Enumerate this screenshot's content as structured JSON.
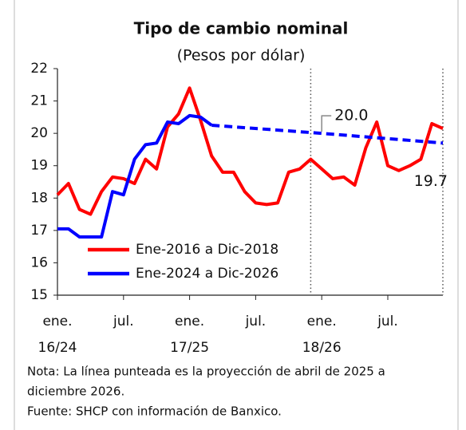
{
  "chart_data": {
    "type": "line",
    "title": "Tipo de cambio nominal",
    "subtitle": "(Pesos por dólar)",
    "x": [
      0,
      1,
      2,
      3,
      4,
      5,
      6,
      7,
      8,
      9,
      10,
      11,
      12,
      13,
      14,
      15,
      16,
      17,
      18,
      19,
      20,
      21,
      22,
      23,
      24,
      25,
      26,
      27,
      28,
      29,
      30,
      31,
      32,
      33,
      34,
      35
    ],
    "xlim": [
      0,
      35
    ],
    "xticks": [
      {
        "value": 0,
        "label": "ene.",
        "sublabel": "16/24"
      },
      {
        "value": 6,
        "label": "jul."
      },
      {
        "value": 12,
        "label": "ene.",
        "sublabel": "17/25"
      },
      {
        "value": 18,
        "label": "jul."
      },
      {
        "value": 24,
        "label": "ene.",
        "sublabel": "18/26"
      },
      {
        "value": 30,
        "label": "jul."
      }
    ],
    "ylim": [
      15,
      22
    ],
    "yticks": [
      15,
      16,
      17,
      18,
      19,
      20,
      21,
      22
    ],
    "series": [
      {
        "name": "Ene-2016 a Dic-2018",
        "color": "#ff0000",
        "values": [
          18.1,
          18.45,
          17.65,
          17.5,
          18.2,
          18.65,
          18.6,
          18.45,
          19.2,
          18.9,
          20.2,
          20.6,
          21.4,
          20.4,
          19.3,
          18.8,
          18.8,
          18.2,
          17.85,
          17.8,
          17.85,
          18.8,
          18.9,
          19.2,
          18.9,
          18.6,
          18.65,
          18.4,
          19.55,
          20.35,
          19.0,
          18.85,
          19.0,
          19.2,
          20.3,
          20.15
        ]
      },
      {
        "name": "Ene-2024 a Dic-2026",
        "color": "#0000ff",
        "values": [
          17.05,
          17.05,
          16.8,
          16.8,
          16.8,
          18.2,
          18.1,
          19.2,
          19.65,
          19.7,
          20.35,
          20.3,
          20.55,
          20.5,
          20.25,
          null,
          null,
          null,
          null,
          null,
          null,
          null,
          null,
          null,
          null,
          null,
          null,
          null,
          null,
          null,
          null,
          null,
          null,
          null,
          null,
          null
        ],
        "projection": {
          "x": [
            14,
            24,
            35
          ],
          "values": [
            20.25,
            20.0,
            19.7
          ],
          "value_labels": [
            null,
            "20.0",
            "19.7"
          ]
        }
      }
    ],
    "vlines": [
      23,
      35
    ],
    "legend": "lower-left",
    "note": [
      "Nota: La línea punteada es la proyección de abril de 2025 a",
      "diciembre 2026.",
      "Fuente: SHCP con información de Banxico."
    ]
  }
}
